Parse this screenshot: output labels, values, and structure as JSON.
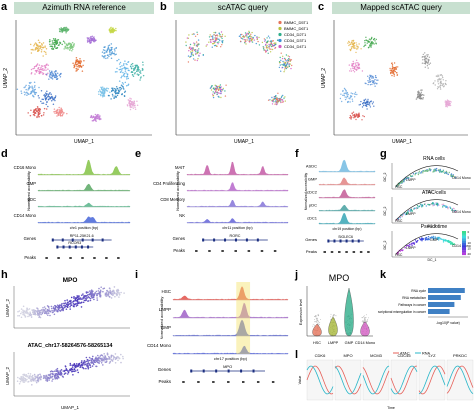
{
  "figure": {
    "panel_letters": [
      "a",
      "b",
      "c",
      "d",
      "e",
      "f",
      "g",
      "h",
      "i",
      "j",
      "k",
      "l"
    ]
  },
  "panel_a": {
    "title": "Azimuth RNA reference",
    "xlabel": "UMAP_1",
    "ylabel": "UMAP_2"
  },
  "panel_b": {
    "title": "scATAC query",
    "xlabel": "UMAP_1",
    "legend": [
      "BMMC_D5T1",
      "BMMC_D6T1",
      "CD34_D2T1",
      "CD34_D3T1",
      "CD34_D4T1"
    ],
    "colors": {
      "BMMC_D5T1": "#e5735a",
      "BMMC_D6T1": "#b7c240",
      "CD34_D2T1": "#2fae8b",
      "CD34_D3T1": "#3b8fd6",
      "CD34_D4T1": "#d25bc2"
    }
  },
  "panel_c": {
    "title": "Mapped scATAC query",
    "xlabel": "UMAP_1",
    "ylabel": "UMAP_2"
  },
  "panel_d": {
    "tracks": [
      "CD16 Mono",
      "GMP",
      "pDC",
      "CD14 Mono"
    ],
    "ylabel": "Normalized accessibility",
    "xlabel": "chr1 position (bp)",
    "genes_label": "Genes",
    "peaks_label": "Peaks",
    "gene_names": [
      "RP11-25K21.6",
      "RCOR3"
    ]
  },
  "panel_e": {
    "tracks": [
      "MAIT",
      "CD4 Proliferating",
      "CD8 Memory",
      "NK"
    ],
    "ylabel": "Normalized accessibility",
    "xlabel": "chr11 position (bp)",
    "genes_label": "Genes",
    "peaks_label": "Peaks",
    "gene_names": [
      "RORC"
    ]
  },
  "panel_f": {
    "tracks": [
      "ASDC",
      "GMP",
      "cDC2",
      "pDC",
      "cDC1"
    ],
    "ylabel": "Normalized accessibility",
    "xlabel": "chr19 position (bp)",
    "genes_label": "Genes",
    "peaks_label": "Peaks",
    "gene_names": [
      "SIGLEC6"
    ]
  },
  "panel_g": {
    "titles": [
      "RNA cells",
      "ATAC cells",
      "Pseudotime"
    ],
    "end_labels": [
      "LMPP",
      "HSC",
      "CD14 Mono",
      "GMP"
    ],
    "xlabel": "DC_1",
    "ylabel": "DC_2",
    "colorbar_ticks": [
      "0",
      "5",
      "10",
      "15",
      "20"
    ]
  },
  "panel_h": {
    "top_title": "MPO",
    "bottom_title": "ATAC_chr17-58264576-58265134",
    "xlabel": "UMAP_1",
    "ylabel": "UMAP_2"
  },
  "panel_i": {
    "tracks": [
      "HSC",
      "LMPP",
      "GMP",
      "CD14 Mono"
    ],
    "ylabel": "Normalized accessibility",
    "xlabel": "chr17 position (bp)",
    "genes_label": "Genes",
    "peaks_label": "Peaks",
    "gene_names": [
      "MPO"
    ]
  },
  "panel_j": {
    "title": "MPO",
    "categories": [
      "HSC",
      "LMPP",
      "GMP",
      "CD14 Mono"
    ],
    "ylabel": "Expression level"
  },
  "panel_k": {
    "chart_data": {
      "type": "bar",
      "orientation": "horizontal",
      "categories": [
        "RNA cycle",
        "RNA metabolism",
        "Pathways in cancer",
        "Transcriptional misregulation in cancer"
      ],
      "values": [
        4.6,
        4.1,
        3.3,
        2.7
      ],
      "xlim": [
        0,
        5
      ],
      "xlabel": "-log10(P value)"
    }
  },
  "panel_l": {
    "genes": [
      "CDK6",
      "MPO",
      "MCM3",
      "CDC45",
      "LYZ",
      "PRKDC"
    ],
    "legend": [
      "ATAC",
      "RNA"
    ],
    "colors": {
      "ATAC": "#e6615a",
      "RNA": "#2ab7c9"
    },
    "xlabel": "Time",
    "ylabel": "Value"
  }
}
